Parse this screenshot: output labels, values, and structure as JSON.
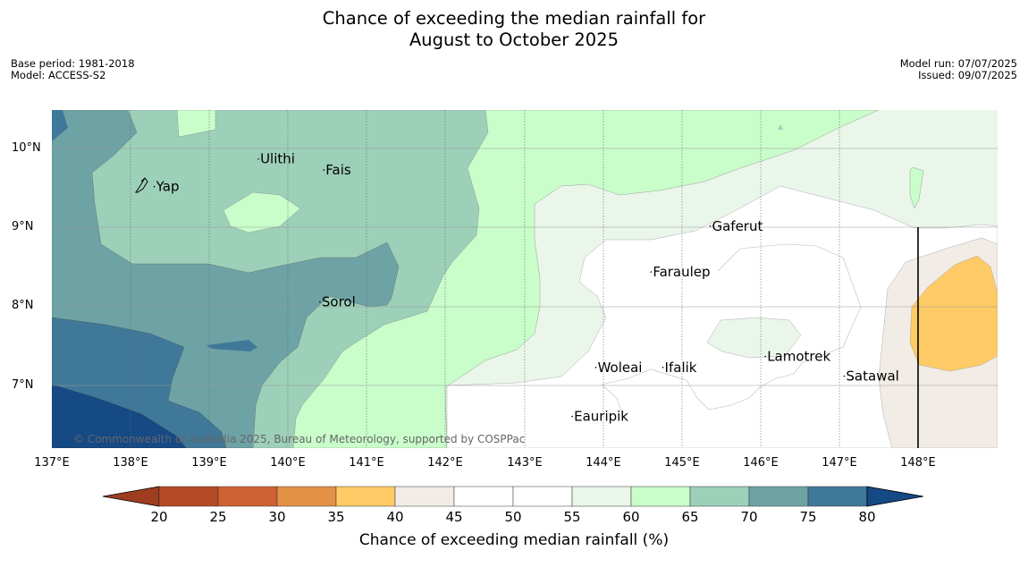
{
  "title": {
    "line1": "Chance of exceeding the median rainfall for",
    "line2": "August to October 2025"
  },
  "info_left": {
    "base_period": "Base period: 1981-2018",
    "model": "Model: ACCESS-S2"
  },
  "info_right": {
    "model_run": "Model run: 07/07/2025",
    "issued": "Issued: 09/07/2025"
  },
  "longitude_labels": [
    "137°E",
    "138°E",
    "139°E",
    "140°E",
    "141°E",
    "142°E",
    "143°E",
    "144°E",
    "145°E",
    "146°E",
    "147°E",
    "148°E"
  ],
  "latitude_labels": [
    "10°N",
    "9°N",
    "8°N",
    "7°N"
  ],
  "places": [
    {
      "name": "Yap",
      "lon": 138.3,
      "lat": 9.53
    },
    {
      "name": "Ulithi",
      "lon": 139.62,
      "lat": 9.88
    },
    {
      "name": "Fais",
      "lon": 140.45,
      "lat": 9.74
    },
    {
      "name": "Gaferut",
      "lon": 145.35,
      "lat": 9.03
    },
    {
      "name": "Faraulep",
      "lon": 144.6,
      "lat": 8.45
    },
    {
      "name": "Sorol",
      "lon": 140.4,
      "lat": 8.07
    },
    {
      "name": "Lamotrek",
      "lon": 146.05,
      "lat": 7.38
    },
    {
      "name": "Woleai",
      "lon": 143.9,
      "lat": 7.24
    },
    {
      "name": "Ifalik",
      "lon": 144.75,
      "lat": 7.24
    },
    {
      "name": "Satawal",
      "lon": 147.05,
      "lat": 7.13
    },
    {
      "name": "Eauripik",
      "lon": 143.6,
      "lat": 6.62
    }
  ],
  "copyright": "© Commonwealth of Australia 2025, Bureau of Meteorology, supported by COSPPac",
  "colorbar": {
    "ticks": [
      "20",
      "25",
      "30",
      "35",
      "40",
      "45",
      "50",
      "55",
      "60",
      "65",
      "70",
      "75",
      "80"
    ],
    "title": "Chance of exceeding median rainfall (%)",
    "low_extend_color": "#9e3d1f",
    "high_extend_color": "#154a85",
    "bins": [
      {
        "from": 20,
        "to": 25,
        "color": "#b44a26"
      },
      {
        "from": 25,
        "to": 30,
        "color": "#cf6133"
      },
      {
        "from": 30,
        "to": 35,
        "color": "#e39145"
      },
      {
        "from": 35,
        "to": 40,
        "color": "#fecb66"
      },
      {
        "from": 40,
        "to": 45,
        "color": "#f2ece6"
      },
      {
        "from": 45,
        "to": 50,
        "color": "#ffffff"
      },
      {
        "from": 50,
        "to": 55,
        "color": "#ffffff"
      },
      {
        "from": 55,
        "to": 60,
        "color": "#eaf6ea"
      },
      {
        "from": 60,
        "to": 65,
        "color": "#c9fdca"
      },
      {
        "from": 65,
        "to": 70,
        "color": "#9dd0b9"
      },
      {
        "from": 70,
        "to": 75,
        "color": "#6ea3a6"
      },
      {
        "from": 75,
        "to": 80,
        "color": "#3f7898"
      }
    ]
  }
}
